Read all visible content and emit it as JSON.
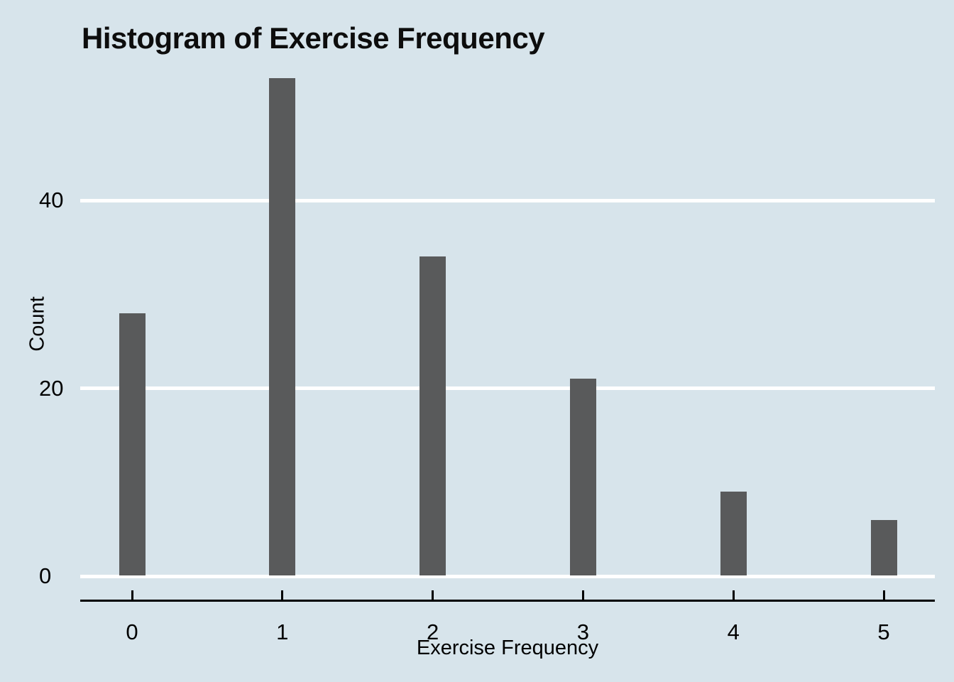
{
  "chart_data": {
    "type": "bar",
    "title": "Histogram of Exercise Frequency",
    "categories": [
      "0",
      "1",
      "2",
      "3",
      "4",
      "5"
    ],
    "values": [
      28,
      53,
      34,
      21,
      9,
      6
    ],
    "xlabel": "Exercise Frequency",
    "ylabel": "Count",
    "yticks": [
      0,
      20,
      40
    ],
    "ylim": [
      0,
      54
    ],
    "grid": "horizontal-white-lines",
    "legend": "none",
    "colors": {
      "background": "#d7e4eb",
      "bar": "#595a5b",
      "axis": "#000000",
      "gridline": "#ffffff",
      "text": "#000000"
    }
  }
}
